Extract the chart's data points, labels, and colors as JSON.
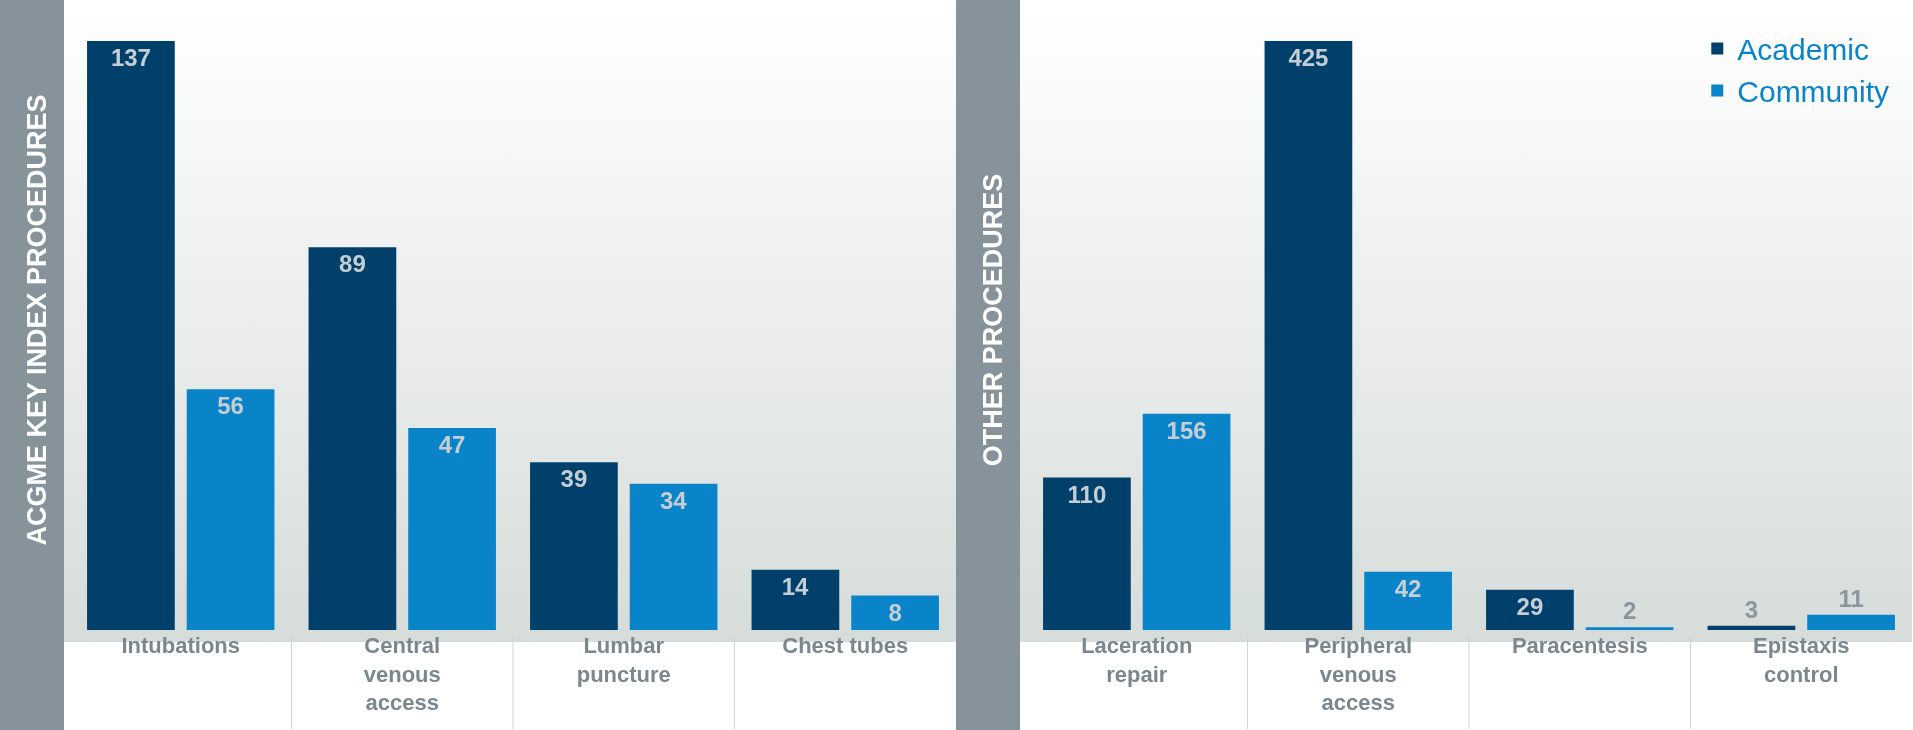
{
  "chart_data": [
    {
      "type": "bar",
      "ylabel": "ACGME KEY INDEX PROCEDURES",
      "categories": [
        "Intubations",
        "Central venous access",
        "Lumbar puncture",
        "Chest tubes"
      ],
      "series": [
        {
          "color": "#00406b",
          "values": [
            137,
            89,
            39,
            14
          ]
        },
        {
          "color": "#0a84c8",
          "values": [
            56,
            47,
            34,
            8
          ]
        }
      ],
      "data_labels": true,
      "legend": false,
      "grid": false,
      "tick_labels": "x"
    },
    {
      "type": "bar",
      "ylabel": "OTHER PROCEDURES",
      "categories": [
        "Laceration repair",
        "Peripheral venous access",
        "Paracentesis",
        "Epistaxis control"
      ],
      "series": [
        {
          "name": "Academic",
          "color": "#00406b",
          "values": [
            110,
            425,
            29,
            3
          ]
        },
        {
          "name": "Community",
          "color": "#0a84c8",
          "values": [
            156,
            42,
            2,
            11
          ]
        }
      ],
      "data_labels": true,
      "legend": "top right",
      "grid": false,
      "tick_labels": "x"
    }
  ]
}
